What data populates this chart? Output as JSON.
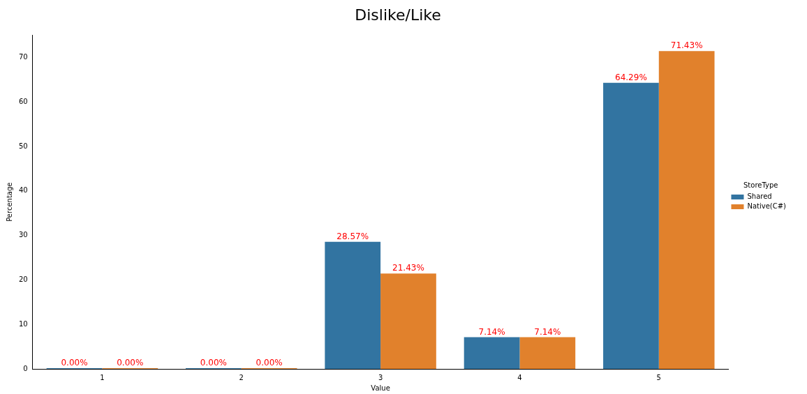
{
  "chart_data": {
    "type": "bar",
    "title": "Dislike/Like",
    "xlabel": "Value",
    "ylabel": "Percentage",
    "legend_title": "StoreType",
    "legend": "right",
    "categories": [
      "1",
      "2",
      "3",
      "4",
      "5"
    ],
    "series": [
      {
        "name": "Shared",
        "color": "#3274a1",
        "values": [
          0,
          0,
          28.57,
          7.14,
          64.29
        ],
        "value_labels": [
          "0.00%",
          "0.00%",
          "28.57%",
          "7.14%",
          "64.29%"
        ]
      },
      {
        "name": "Native(C#)",
        "color": "#e1812c",
        "values": [
          0,
          0,
          21.43,
          7.14,
          71.43
        ],
        "value_labels": [
          "0.00%",
          "0.00%",
          "21.43%",
          "7.14%",
          "71.43%"
        ]
      }
    ],
    "ylim": [
      0,
      75
    ],
    "yticks": [
      0,
      10,
      20,
      30,
      40,
      50,
      60,
      70
    ],
    "grid": false
  }
}
